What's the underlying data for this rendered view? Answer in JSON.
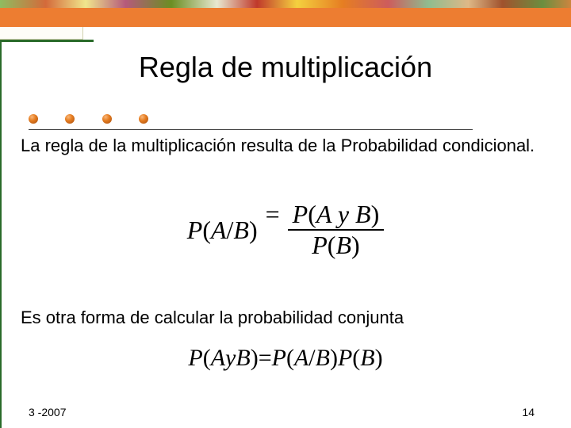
{
  "colors": {
    "orange_band": "#ed7d31",
    "green_accent": "#2a6b2a",
    "background": "#ffffff",
    "text": "#000000",
    "bullet_gradient": [
      "#f9b77a",
      "#e67e22",
      "#a84d0e"
    ]
  },
  "typography": {
    "title_font": "Comic Sans MS",
    "title_size_pt": 36,
    "body_font": "Arial",
    "body_size_pt": 22,
    "formula_font": "Times New Roman",
    "formula_size_pt": 32,
    "footer_size_pt": 14
  },
  "title": "Regla de multiplicación",
  "body": {
    "para1": "La regla de la multiplicación resulta de la Probabilidad condicional.",
    "para2": "Es otra forma de calcular la probabilidad conjunta"
  },
  "formula1": {
    "lhs_P": "P",
    "lhs_open": "(",
    "lhs_a": "A",
    "lhs_slash": " / ",
    "lhs_b": "B",
    "lhs_close": ")",
    "eq": " = ",
    "num_P": "P",
    "num_open": "(",
    "num_a": "A",
    "num_y": " y ",
    "num_b": "B",
    "num_close": ")",
    "den_P": "P",
    "den_open": "(",
    "den_b": "B",
    "den_close": ")"
  },
  "formula2": {
    "lhs_P": "P",
    "lhs_open": "(",
    "lhs_a": "A",
    "lhs_y": " y ",
    "lhs_b": "B",
    "lhs_close": ")",
    "eq": " = ",
    "r1_P": "P",
    "r1_open": "(",
    "r1_a": "A",
    "r1_slash": " / ",
    "r1_b": "B",
    "r1_close": ")",
    "r2_P": "P",
    "r2_open": "(",
    "r2_b": "B",
    "r2_close": ")"
  },
  "footer": {
    "date": "3 -2007",
    "page": "14"
  },
  "bullets": {
    "count": 4
  }
}
